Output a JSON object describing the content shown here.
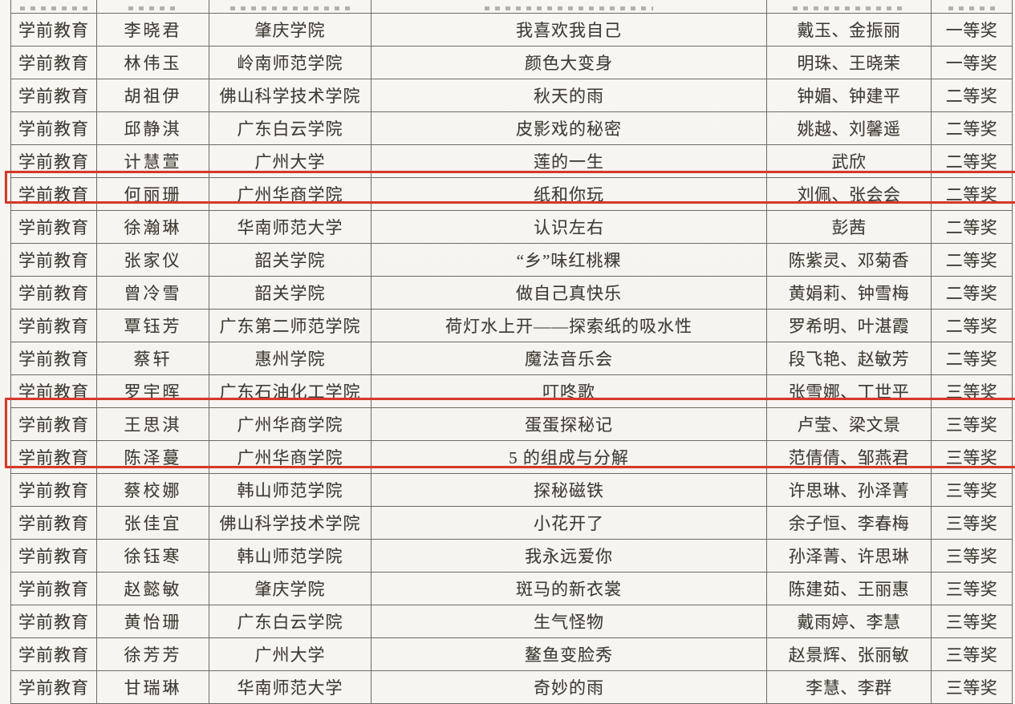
{
  "document": {
    "language": "zh",
    "description": "scanned award list table, preschool education section",
    "colors": {
      "paper": "#f7f5f1",
      "ink": "#403c35",
      "grid_line": "#6f6a63",
      "highlight_red": "#d5392c"
    },
    "partial_top_row_visible": true,
    "table": {
      "column_keys": [
        "category",
        "name",
        "institution",
        "title",
        "advisors",
        "award"
      ],
      "rows": [
        {
          "category": "学前教育",
          "name": "李晓君",
          "institution": "肇庆学院",
          "title": "我喜欢我自己",
          "advisors": "戴玉、金振丽",
          "award": "一等奖",
          "highlighted": false
        },
        {
          "category": "学前教育",
          "name": "林伟玉",
          "institution": "岭南师范学院",
          "title": "颜色大变身",
          "advisors": "明珠、王晓茉",
          "award": "一等奖",
          "highlighted": false
        },
        {
          "category": "学前教育",
          "name": "胡祖伊",
          "institution": "佛山科学技术学院",
          "title": "秋天的雨",
          "advisors": "钟媚、钟建平",
          "award": "二等奖",
          "highlighted": false
        },
        {
          "category": "学前教育",
          "name": "邱静淇",
          "institution": "广东白云学院",
          "title": "皮影戏的秘密",
          "advisors": "姚越、刘馨遥",
          "award": "二等奖",
          "highlighted": false
        },
        {
          "category": "学前教育",
          "name": "计慧萱",
          "institution": "广州大学",
          "title": "莲的一生",
          "advisors": "武欣",
          "award": "二等奖",
          "highlighted": false
        },
        {
          "category": "学前教育",
          "name": "何丽珊",
          "institution": "广州华商学院",
          "title": "纸和你玩",
          "advisors": "刘佩、张会会",
          "award": "二等奖",
          "highlighted": true
        },
        {
          "category": "学前教育",
          "name": "徐瀚琳",
          "institution": "华南师范大学",
          "title": "认识左右",
          "advisors": "彭茜",
          "award": "二等奖",
          "highlighted": false
        },
        {
          "category": "学前教育",
          "name": "张家仪",
          "institution": "韶关学院",
          "title": "“乡”味红桃粿",
          "advisors": "陈紫灵、邓菊香",
          "award": "二等奖",
          "highlighted": false
        },
        {
          "category": "学前教育",
          "name": "曾冷雪",
          "institution": "韶关学院",
          "title": "做自己真快乐",
          "advisors": "黄娟莉、钟雪梅",
          "award": "二等奖",
          "highlighted": false
        },
        {
          "category": "学前教育",
          "name": "覃钰芳",
          "institution": "广东第二师范学院",
          "title": "荷灯水上开——探索纸的吸水性",
          "advisors": "罗希明、叶湛霞",
          "award": "二等奖",
          "highlighted": false
        },
        {
          "category": "学前教育",
          "name": "蔡轩",
          "institution": "惠州学院",
          "title": "魔法音乐会",
          "advisors": "段飞艳、赵敏芳",
          "award": "二等奖",
          "highlighted": false
        },
        {
          "category": "学前教育",
          "name": "罗宇晖",
          "institution": "广东石油化工学院",
          "title": "叮咚歌",
          "advisors": "张雪娜、丁世平",
          "award": "三等奖",
          "highlighted": false
        },
        {
          "category": "学前教育",
          "name": "王思淇",
          "institution": "广州华商学院",
          "title": "蛋蛋探秘记",
          "advisors": "卢莹、梁文景",
          "award": "三等奖",
          "highlighted": true
        },
        {
          "category": "学前教育",
          "name": "陈泽蔓",
          "institution": "广州华商学院",
          "title": "5 的组成与分解",
          "advisors": "范倩倩、邹燕君",
          "award": "三等奖",
          "highlighted": true
        },
        {
          "category": "学前教育",
          "name": "蔡校娜",
          "institution": "韩山师范学院",
          "title": "探秘磁铁",
          "advisors": "许思琳、孙泽菁",
          "award": "三等奖",
          "highlighted": false
        },
        {
          "category": "学前教育",
          "name": "张佳宜",
          "institution": "佛山科学技术学院",
          "title": "小花开了",
          "advisors": "余子恒、李春梅",
          "award": "三等奖",
          "highlighted": false
        },
        {
          "category": "学前教育",
          "name": "徐钰寒",
          "institution": "韩山师范学院",
          "title": "我永远爱你",
          "advisors": "孙泽菁、许思琳",
          "award": "三等奖",
          "highlighted": false
        },
        {
          "category": "学前教育",
          "name": "赵懿敏",
          "institution": "肇庆学院",
          "title": "斑马的新衣裳",
          "advisors": "陈建茹、王丽惠",
          "award": "三等奖",
          "highlighted": false
        },
        {
          "category": "学前教育",
          "name": "黄怡珊",
          "institution": "广东白云学院",
          "title": "生气怪物",
          "advisors": "戴雨婷、李慧",
          "award": "三等奖",
          "highlighted": false
        },
        {
          "category": "学前教育",
          "name": "徐芳芳",
          "institution": "广州大学",
          "title": "鳌鱼变脸秀",
          "advisors": "赵景辉、张丽敏",
          "award": "三等奖",
          "highlighted": false
        },
        {
          "category": "学前教育",
          "name": "甘瑞琳",
          "institution": "华南师范大学",
          "title": "奇妙的雨",
          "advisors": "李慧、李群",
          "award": "三等奖",
          "highlighted": false
        }
      ]
    },
    "highlight_boxes": [
      {
        "covers_rows": [
          6
        ]
      },
      {
        "covers_rows": [
          13,
          14
        ]
      }
    ]
  }
}
